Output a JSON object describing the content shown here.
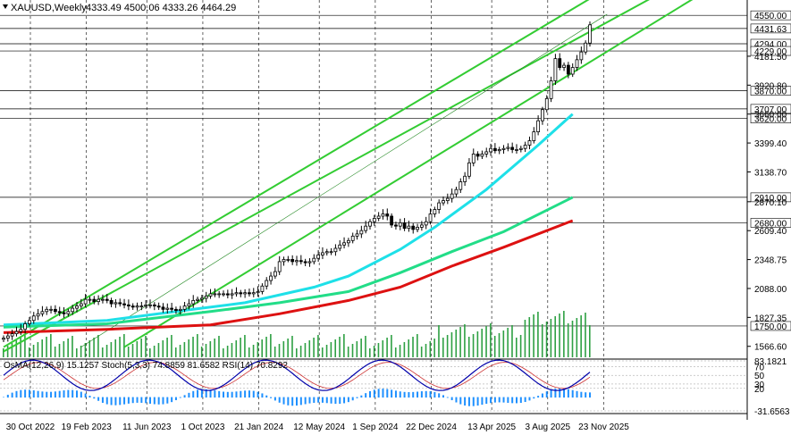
{
  "header": {
    "symbol": "XAUUSD,Weekly",
    "ohlc": "4333.49 4500.06 4333.26 4464.29"
  },
  "colors": {
    "candle": "#000000",
    "channel": "#33cc33",
    "ma_cyan": "#1ee0e8",
    "ma_green": "#22dd88",
    "ma_red": "#dd1111",
    "volume": "#2ea043",
    "osma": "#1e90ff",
    "stoch_main": "#0000aa",
    "stoch_signal": "#cc3333",
    "level_line": "#000000"
  },
  "chart_data": [
    {
      "type": "candlestick",
      "title": "XAUUSD,Weekly",
      "x_ticks": [
        "30 Oct 2022",
        "19 Feb 2023",
        "11 Jun 2023",
        "1 Oct 2023",
        "21 Jan 2024",
        "12 May 2024",
        "1 Sep 2024",
        "22 Dec 2024",
        "13 Apr 2025",
        "3 Aug 2025",
        "23 Nov 2025"
      ],
      "y_ticks": [
        1566.6,
        1827.35,
        2088.0,
        2348.75,
        2609.4,
        2870.1,
        3138.7,
        3399.4,
        3660.0,
        3920.8,
        4181.5
      ],
      "ylim": [
        1500,
        4640
      ],
      "horizontal_levels": [
        4550.0,
        4431.63,
        4294.0,
        4229.0,
        3870.0,
        3707.0,
        3620.0,
        2910.0,
        2680.0,
        1750.0
      ],
      "moving_averages": [
        {
          "color": "cyan",
          "points": [
            [
              0,
              1760
            ],
            [
              24,
              1800
            ],
            [
              44,
              1900
            ],
            [
              56,
              1960
            ],
            [
              72,
              2100
            ],
            [
              80,
              2200
            ],
            [
              92,
              2440
            ],
            [
              100,
              2640
            ],
            [
              112,
              2980
            ],
            [
              124,
              3380
            ],
            [
              132,
              3660
            ]
          ]
        },
        {
          "color": "green",
          "points": [
            [
              0,
              1740
            ],
            [
              24,
              1770
            ],
            [
              48,
              1880
            ],
            [
              64,
              1960
            ],
            [
              80,
              2060
            ],
            [
              92,
              2230
            ],
            [
              104,
              2420
            ],
            [
              116,
              2600
            ],
            [
              132,
              2910
            ]
          ]
        },
        {
          "color": "red",
          "points": [
            [
              0,
              1690
            ],
            [
              24,
              1720
            ],
            [
              48,
              1760
            ],
            [
              64,
              1860
            ],
            [
              80,
              1980
            ],
            [
              92,
              2100
            ],
            [
              104,
              2290
            ],
            [
              116,
              2460
            ],
            [
              132,
              2700
            ]
          ]
        }
      ],
      "channel_lines": [
        [
          [
            0,
            1560
          ],
          [
            136,
            4700
          ]
        ],
        [
          [
            28,
            1560
          ],
          [
            160,
            4700
          ]
        ],
        [
          [
            0,
            1520
          ],
          [
            150,
            4700
          ]
        ]
      ],
      "close_series": [
        1640,
        1660,
        1680,
        1700,
        1720,
        1770,
        1800,
        1840,
        1860,
        1880,
        1900,
        1900,
        1880,
        1870,
        1860,
        1880,
        1910,
        1930,
        1950,
        1990,
        1990,
        1970,
        1990,
        1990,
        1980,
        1950,
        1960,
        1950,
        1940,
        1930,
        1920,
        1930,
        1930,
        1940,
        1940,
        1930,
        1920,
        1900,
        1910,
        1900,
        1890,
        1900,
        1930,
        1950,
        1980,
        1990,
        2000,
        2020,
        2040,
        2040,
        2040,
        2040,
        2030,
        2040,
        2050,
        2040,
        2050,
        2040,
        2050,
        2060,
        2110,
        2160,
        2200,
        2240,
        2330,
        2350,
        2350,
        2330,
        2340,
        2330,
        2320,
        2330,
        2360,
        2390,
        2410,
        2420,
        2420,
        2450,
        2480,
        2500,
        2520,
        2560,
        2580,
        2610,
        2650,
        2690,
        2720,
        2740,
        2760,
        2740,
        2660,
        2650,
        2680,
        2630,
        2650,
        2620,
        2640,
        2660,
        2690,
        2760,
        2800,
        2860,
        2880,
        2900,
        2940,
        2980,
        3050,
        3100,
        3220,
        3300,
        3280,
        3300,
        3320,
        3350,
        3330,
        3340,
        3350,
        3360,
        3340,
        3340,
        3350,
        3380,
        3420,
        3500,
        3600,
        3700,
        3800,
        3960,
        4160,
        4080,
        4100,
        4020,
        4080,
        4150,
        4220,
        4300,
        4464.29
      ],
      "volume_note": "histogram shown at chart bottom"
    },
    {
      "type": "line",
      "title": "OsMA(12,26,9) 15.1257 Stoch(5,3,3) 74.8859 81.6582 RSI(14) 70.8292",
      "y_ticks": [
        83.1821,
        70,
        50,
        30,
        20,
        -31.6563
      ],
      "ylim": [
        -31.6563,
        83.1821
      ]
    }
  ]
}
